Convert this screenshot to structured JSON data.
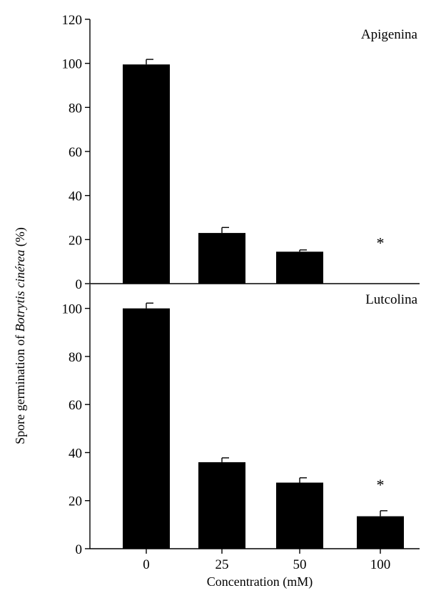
{
  "chart_data": {
    "type": "bar",
    "xlabel": "Concentration (mM)",
    "ylabel_prefix": "Spore germination of ",
    "ylabel_italic": "Botrytis cinérea",
    "ylabel_suffix": " (%)",
    "categories": [
      "0",
      "25",
      "50",
      "100"
    ],
    "panels": [
      {
        "label": "Apigenina",
        "ylim": [
          0,
          120
        ],
        "yticks": [
          0,
          20,
          40,
          60,
          80,
          100,
          120
        ],
        "values": [
          99.5,
          23,
          14.5,
          0
        ],
        "errors": [
          2.3,
          2.5,
          0.8,
          0
        ],
        "markers": [
          {
            "category": "100",
            "text": "*",
            "value": 20
          }
        ]
      },
      {
        "label": "Lutcolina",
        "ylim": [
          0,
          110
        ],
        "yticks": [
          0,
          20,
          40,
          60,
          80,
          100
        ],
        "values": [
          100,
          36,
          27.5,
          13.5
        ],
        "errors": [
          2.2,
          1.8,
          2,
          2.3
        ],
        "markers": [
          {
            "category": "100",
            "text": "*",
            "value": 28
          }
        ]
      }
    ]
  }
}
